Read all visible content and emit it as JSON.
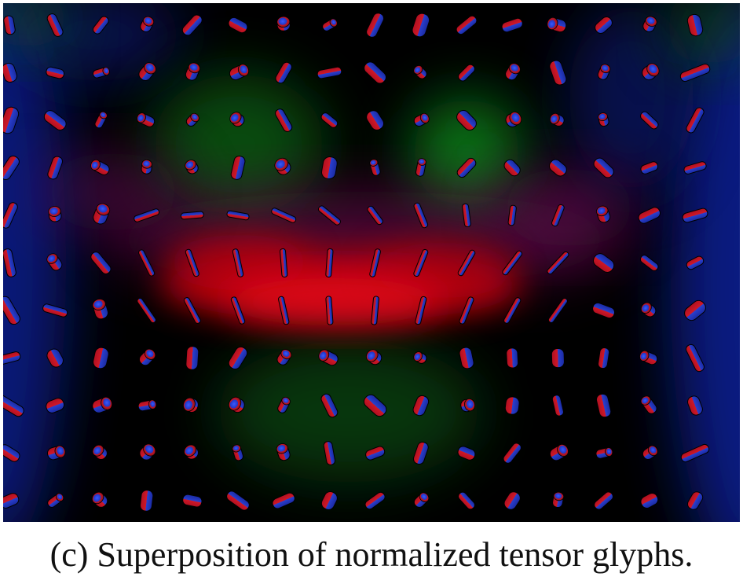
{
  "caption": "(c) Superposition of normalized tensor glyphs.",
  "colors": {
    "background": "#000000",
    "field_red": "#e00010",
    "field_green": "#10b020",
    "field_blue": "#1020a0",
    "glyph_red": "#c01020",
    "glyph_blue": "#2040d0"
  },
  "glyph_grid": {
    "rows": 11,
    "columns": 16,
    "shape": "superquadric-cylinder"
  }
}
